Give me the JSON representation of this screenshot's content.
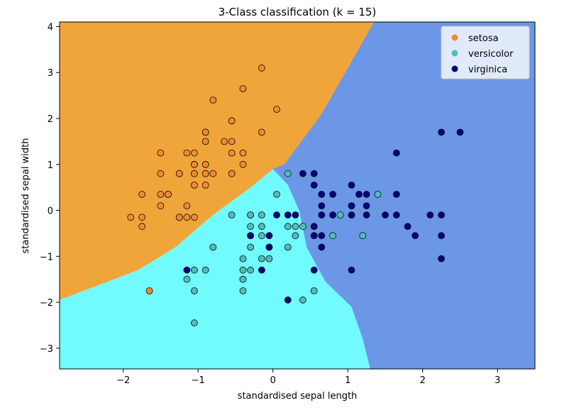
{
  "chart_data": {
    "type": "scatter",
    "title": "3-Class classification (k = 15)",
    "xlabel": "standardised sepal length",
    "ylabel": "standardised sepal width",
    "xlim": [
      -2.85,
      3.5
    ],
    "ylim": [
      -3.45,
      4.1
    ],
    "x_ticks": [
      {
        "value": -2,
        "label": "−2"
      },
      {
        "value": -1,
        "label": "−1"
      },
      {
        "value": 0,
        "label": "0"
      },
      {
        "value": 1,
        "label": "1"
      },
      {
        "value": 2,
        "label": "2"
      },
      {
        "value": 3,
        "label": "3"
      }
    ],
    "y_ticks": [
      {
        "value": -3,
        "label": "−3"
      },
      {
        "value": -2,
        "label": "−2"
      },
      {
        "value": -1,
        "label": "−1"
      },
      {
        "value": 0,
        "label": "0"
      },
      {
        "value": 1,
        "label": "1"
      },
      {
        "value": 2,
        "label": "2"
      },
      {
        "value": 3,
        "label": "3"
      },
      {
        "value": 4,
        "label": "4"
      }
    ],
    "grid": false,
    "legend_position": "top-right",
    "regions": [
      {
        "class": "setosa",
        "color": "#f0a53a",
        "polygon": [
          [
            -2.85,
            4.1
          ],
          [
            1.35,
            4.1
          ],
          [
            0.65,
            2.1
          ],
          [
            0.15,
            1.0
          ],
          [
            -0.3,
            0.5
          ],
          [
            -0.8,
            -0.1
          ],
          [
            -1.3,
            -0.8
          ],
          [
            -1.8,
            -1.3
          ],
          [
            -2.85,
            -1.95
          ]
        ]
      },
      {
        "class": "versicolor",
        "color": "#72fbff",
        "polygon": [
          [
            -2.85,
            -1.95
          ],
          [
            -1.8,
            -1.3
          ],
          [
            -1.3,
            -0.8
          ],
          [
            -0.8,
            -0.1
          ],
          [
            -0.3,
            0.5
          ],
          [
            0.0,
            0.9
          ],
          [
            0.2,
            0.55
          ],
          [
            0.35,
            0.0
          ],
          [
            0.45,
            -0.8
          ],
          [
            0.7,
            -1.55
          ],
          [
            1.05,
            -2.1
          ],
          [
            1.2,
            -2.8
          ],
          [
            1.3,
            -3.45
          ],
          [
            -2.85,
            -3.45
          ]
        ]
      },
      {
        "class": "virginica",
        "color": "#6b97e6",
        "polygon": [
          [
            1.35,
            4.1
          ],
          [
            3.5,
            4.1
          ],
          [
            3.5,
            -3.45
          ],
          [
            1.3,
            -3.45
          ],
          [
            1.2,
            -2.8
          ],
          [
            1.05,
            -2.1
          ],
          [
            0.7,
            -1.55
          ],
          [
            0.45,
            -0.8
          ],
          [
            0.35,
            0.0
          ],
          [
            0.2,
            0.55
          ],
          [
            0.0,
            0.9
          ],
          [
            0.15,
            1.0
          ],
          [
            0.65,
            2.1
          ]
        ]
      }
    ],
    "series": [
      {
        "name": "setosa",
        "color": "#ee8a34",
        "region_color": "#f0a53a",
        "points": [
          [
            -0.15,
            3.1
          ],
          [
            -0.4,
            2.65
          ],
          [
            -0.8,
            2.4
          ],
          [
            0.05,
            2.2
          ],
          [
            -0.55,
            1.95
          ],
          [
            -0.55,
            1.95
          ],
          [
            -0.15,
            1.7
          ],
          [
            -0.9,
            1.7
          ],
          [
            -0.9,
            1.7
          ],
          [
            -0.65,
            1.5
          ],
          [
            -0.9,
            1.5
          ],
          [
            -0.55,
            1.5
          ],
          [
            -1.5,
            1.25
          ],
          [
            -1.15,
            1.25
          ],
          [
            -1.05,
            1.25
          ],
          [
            -0.4,
            1.25
          ],
          [
            -0.55,
            1.25
          ],
          [
            -1.05,
            1.0
          ],
          [
            -1.05,
            1.0
          ],
          [
            -0.9,
            1.0
          ],
          [
            -0.9,
            1.0
          ],
          [
            -0.4,
            1.0
          ],
          [
            -1.5,
            0.8
          ],
          [
            -1.25,
            0.8
          ],
          [
            -1.25,
            0.8
          ],
          [
            -1.05,
            0.8
          ],
          [
            -1.05,
            0.8
          ],
          [
            -0.9,
            0.8
          ],
          [
            -0.9,
            0.8
          ],
          [
            -0.8,
            0.8
          ],
          [
            -0.55,
            0.8
          ],
          [
            -0.55,
            0.8
          ],
          [
            -1.05,
            0.55
          ],
          [
            -0.9,
            0.55
          ],
          [
            -1.75,
            0.35
          ],
          [
            -1.5,
            0.35
          ],
          [
            -1.4,
            0.35
          ],
          [
            -1.4,
            0.35
          ],
          [
            -1.15,
            0.1
          ],
          [
            -1.5,
            0.1
          ],
          [
            -1.9,
            -0.15
          ],
          [
            -1.75,
            -0.15
          ],
          [
            -1.25,
            -0.15
          ],
          [
            -1.25,
            -0.15
          ],
          [
            -1.05,
            -0.15
          ],
          [
            -1.15,
            -0.15
          ],
          [
            -1.75,
            -0.35
          ],
          [
            -1.65,
            -1.75
          ]
        ]
      },
      {
        "name": "versicolor",
        "color": "#4dbdbd",
        "region_color": "#72fbff",
        "points": [
          [
            0.2,
            0.8
          ],
          [
            0.05,
            0.35
          ],
          [
            1.4,
            0.35
          ],
          [
            1.05,
            -0.1
          ],
          [
            0.9,
            -0.1
          ],
          [
            -0.55,
            -0.1
          ],
          [
            -0.3,
            -0.1
          ],
          [
            -0.3,
            -0.1
          ],
          [
            -0.15,
            -0.1
          ],
          [
            0.2,
            -0.35
          ],
          [
            0.3,
            -0.35
          ],
          [
            0.4,
            -0.35
          ],
          [
            0.55,
            -0.35
          ],
          [
            -0.3,
            -0.35
          ],
          [
            -0.15,
            -0.35
          ],
          [
            0.3,
            -0.55
          ],
          [
            0.55,
            -0.55
          ],
          [
            0.8,
            -0.55
          ],
          [
            1.2,
            -0.55
          ],
          [
            -0.3,
            -0.55
          ],
          [
            -0.15,
            -0.55
          ],
          [
            -0.8,
            -0.8
          ],
          [
            -0.3,
            -0.8
          ],
          [
            -0.05,
            -0.8
          ],
          [
            0.2,
            -0.8
          ],
          [
            -0.05,
            -1.05
          ],
          [
            -0.15,
            -1.05
          ],
          [
            -0.4,
            -1.05
          ],
          [
            -0.4,
            -1.3
          ],
          [
            -0.3,
            -1.3
          ],
          [
            -1.05,
            -1.3
          ],
          [
            -0.9,
            -1.3
          ],
          [
            -1.15,
            -1.5
          ],
          [
            -0.4,
            -1.5
          ],
          [
            -0.4,
            -1.5
          ],
          [
            -1.05,
            -1.75
          ],
          [
            -0.4,
            -1.75
          ],
          [
            0.55,
            -1.75
          ],
          [
            0.4,
            -1.95
          ],
          [
            -1.05,
            -2.45
          ]
        ]
      },
      {
        "name": "virginica",
        "color": "#00007f",
        "region_color": "#6b97e6",
        "points": [
          [
            2.25,
            1.7
          ],
          [
            2.5,
            1.7
          ],
          [
            1.65,
            1.25
          ],
          [
            0.4,
            0.8
          ],
          [
            0.55,
            0.8
          ],
          [
            0.55,
            0.55
          ],
          [
            1.05,
            0.55
          ],
          [
            0.65,
            0.35
          ],
          [
            0.8,
            0.35
          ],
          [
            1.15,
            0.35
          ],
          [
            1.25,
            0.35
          ],
          [
            1.65,
            0.35
          ],
          [
            0.65,
            0.1
          ],
          [
            1.05,
            0.1
          ],
          [
            1.05,
            0.1
          ],
          [
            1.25,
            0.1
          ],
          [
            0.05,
            -0.1
          ],
          [
            0.2,
            -0.1
          ],
          [
            0.3,
            -0.1
          ],
          [
            0.65,
            -0.1
          ],
          [
            0.8,
            -0.1
          ],
          [
            1.05,
            -0.1
          ],
          [
            1.25,
            -0.1
          ],
          [
            1.5,
            -0.1
          ],
          [
            1.65,
            -0.1
          ],
          [
            2.1,
            -0.1
          ],
          [
            2.25,
            -0.1
          ],
          [
            0.55,
            -0.35
          ],
          [
            1.8,
            -0.35
          ],
          [
            0.55,
            -0.55
          ],
          [
            0.65,
            -0.55
          ],
          [
            1.9,
            -0.55
          ],
          [
            2.25,
            -0.55
          ],
          [
            -0.3,
            -0.55
          ],
          [
            -0.05,
            -0.55
          ],
          [
            0.65,
            -0.8
          ],
          [
            -0.05,
            -0.8
          ],
          [
            2.25,
            -1.05
          ],
          [
            -0.15,
            -1.3
          ],
          [
            0.55,
            -1.3
          ],
          [
            1.05,
            -1.3
          ],
          [
            -1.15,
            -1.3
          ],
          [
            0.2,
            -1.95
          ]
        ]
      }
    ]
  }
}
